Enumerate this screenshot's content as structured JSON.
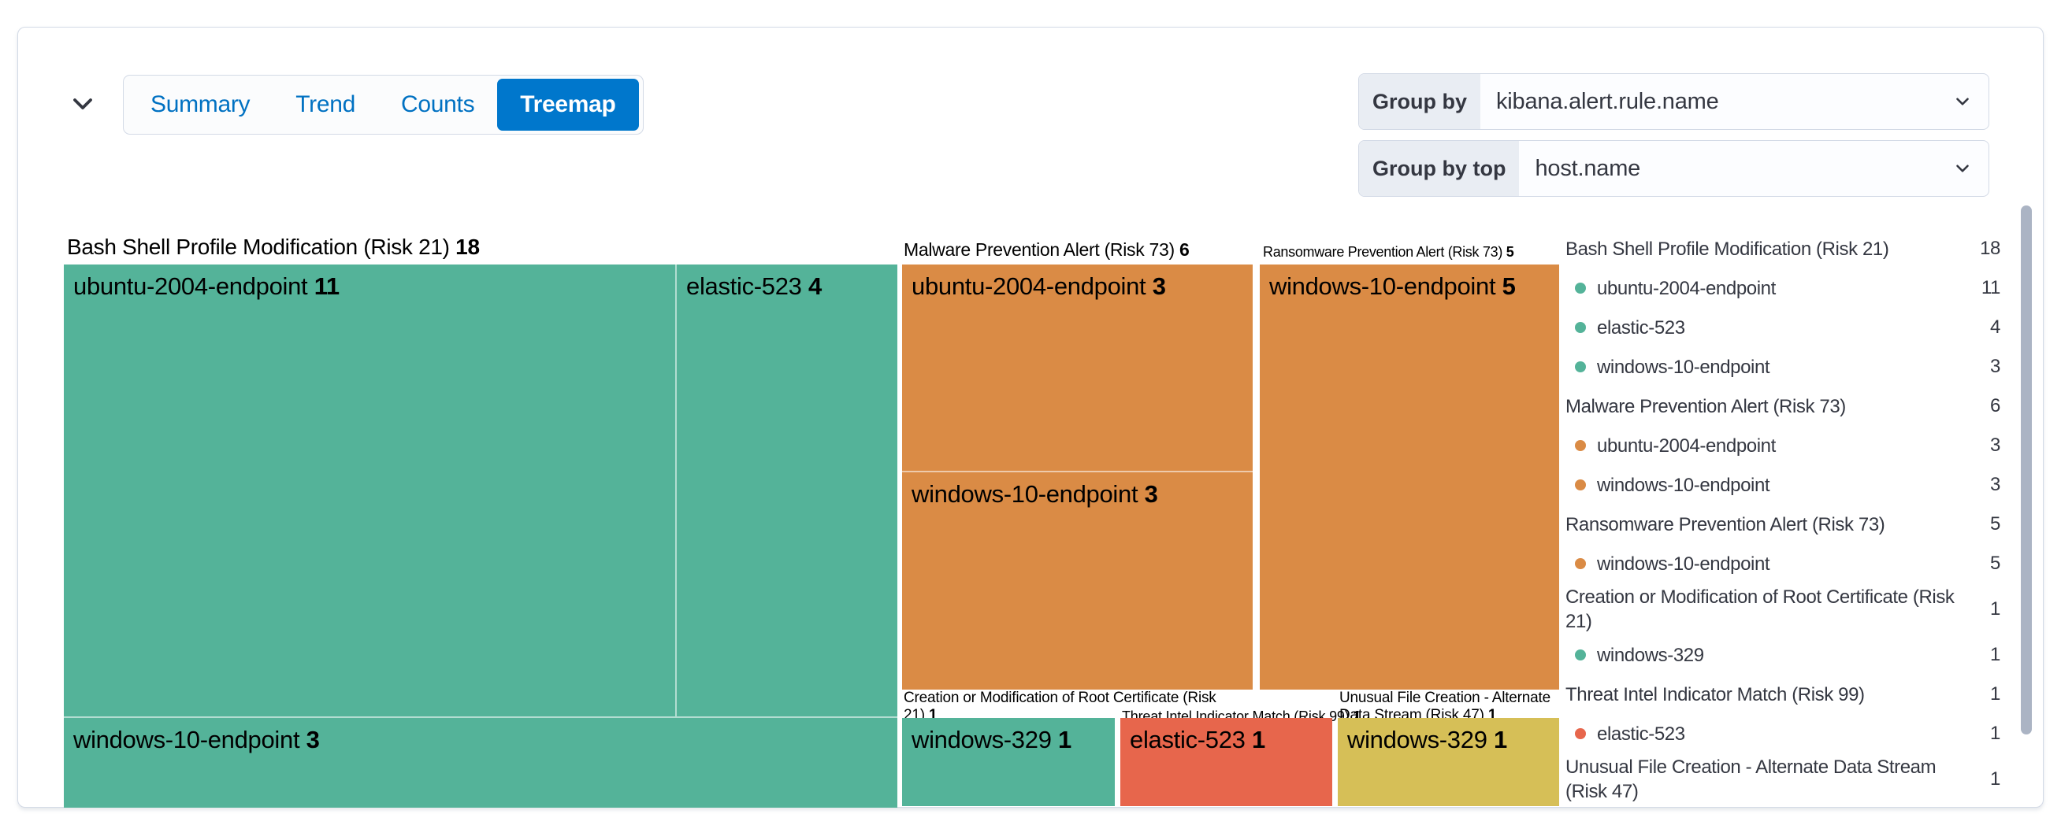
{
  "tabs": {
    "collapse_icon": "chevron-down-icon",
    "items": [
      {
        "label": "Summary",
        "selected": false
      },
      {
        "label": "Trend",
        "selected": false
      },
      {
        "label": "Counts",
        "selected": false
      },
      {
        "label": "Treemap",
        "selected": true
      }
    ]
  },
  "controls": {
    "group_by": {
      "label": "Group by",
      "value": "kibana.alert.rule.name"
    },
    "group_by_top": {
      "label": "Group by top",
      "value": "host.name"
    }
  },
  "colors": {
    "green": "#54B399",
    "orange": "#DA8B45",
    "red": "#E7664C",
    "yellow": "#D6BF57",
    "tab_selected_bg": "#0077CC",
    "link_blue": "#0071C2",
    "border": "#D3DAE6",
    "text": "#343741",
    "prepend_bg": "#E9EDF3",
    "scrollbar_thumb": "#ABB4C4"
  },
  "treemap": {
    "groups": [
      {
        "name": "Bash Shell Profile Modification (Risk 21)",
        "count": "18",
        "color": "#54B399",
        "cells": [
          {
            "host": "ubuntu-2004-endpoint",
            "count": "11"
          },
          {
            "host": "elastic-523",
            "count": "4"
          },
          {
            "host": "windows-10-endpoint",
            "count": "3"
          }
        ]
      },
      {
        "name": "Malware Prevention Alert (Risk 73)",
        "count": "6",
        "color": "#DA8B45",
        "cells": [
          {
            "host": "ubuntu-2004-endpoint",
            "count": "3"
          },
          {
            "host": "windows-10-endpoint",
            "count": "3"
          }
        ]
      },
      {
        "name": "Ransomware Prevention Alert (Risk 73)",
        "count": "5",
        "color": "#DA8B45",
        "cells": [
          {
            "host": "windows-10-endpoint",
            "count": "5"
          }
        ]
      },
      {
        "name": "Creation or Modification of Root Certificate",
        "count": "1",
        "name_suffix": "(Risk 21)",
        "color": "#54B399",
        "cells": [
          {
            "host": "windows-329",
            "count": "1"
          }
        ]
      },
      {
        "name": "Threat Intel Indicator Match (Risk 99)",
        "count": "1",
        "color": "#E7664C",
        "cells": [
          {
            "host": "elastic-523",
            "count": "1"
          }
        ]
      },
      {
        "name": "Unusual File Creation - Alternate Data Stream",
        "count": "1",
        "name_suffix": "(Risk 47)",
        "color": "#D6BF57",
        "cells": [
          {
            "host": "windows-329",
            "count": "1"
          }
        ]
      }
    ]
  },
  "legend": {
    "rows": [
      {
        "kind": "rule",
        "label": "Bash Shell Profile Modification (Risk 21)",
        "count": "18"
      },
      {
        "kind": "host",
        "label": "ubuntu-2004-endpoint",
        "count": "11",
        "color": "#54B399"
      },
      {
        "kind": "host",
        "label": "elastic-523",
        "count": "4",
        "color": "#54B399"
      },
      {
        "kind": "host",
        "label": "windows-10-endpoint",
        "count": "3",
        "color": "#54B399"
      },
      {
        "kind": "rule",
        "label": "Malware Prevention Alert (Risk 73)",
        "count": "6"
      },
      {
        "kind": "host",
        "label": "ubuntu-2004-endpoint",
        "count": "3",
        "color": "#DA8B45"
      },
      {
        "kind": "host",
        "label": "windows-10-endpoint",
        "count": "3",
        "color": "#DA8B45"
      },
      {
        "kind": "rule",
        "label": "Ransomware Prevention Alert (Risk 73)",
        "count": "5"
      },
      {
        "kind": "host",
        "label": "windows-10-endpoint",
        "count": "5",
        "color": "#DA8B45"
      },
      {
        "kind": "rule",
        "label": "Creation or Modification of Root Certificate (Risk 21)",
        "count": "1"
      },
      {
        "kind": "host",
        "label": "windows-329",
        "count": "1",
        "color": "#54B399"
      },
      {
        "kind": "rule",
        "label": "Threat Intel Indicator Match (Risk 99)",
        "count": "1"
      },
      {
        "kind": "host",
        "label": "elastic-523",
        "count": "1",
        "color": "#E7664C"
      },
      {
        "kind": "rule",
        "label": "Unusual File Creation - Alternate Data Stream (Risk 47)",
        "count": "1"
      }
    ]
  },
  "chart_data": {
    "type": "treemap",
    "group_by": "kibana.alert.rule.name",
    "group_by_top": "host.name",
    "legend_position": "right",
    "series": [
      {
        "name": "Bash Shell Profile Modification (Risk 21)",
        "value": 18,
        "color": "#54B399",
        "children": [
          {
            "name": "ubuntu-2004-endpoint",
            "value": 11
          },
          {
            "name": "elastic-523",
            "value": 4
          },
          {
            "name": "windows-10-endpoint",
            "value": 3
          }
        ]
      },
      {
        "name": "Malware Prevention Alert (Risk 73)",
        "value": 6,
        "color": "#DA8B45",
        "children": [
          {
            "name": "ubuntu-2004-endpoint",
            "value": 3
          },
          {
            "name": "windows-10-endpoint",
            "value": 3
          }
        ]
      },
      {
        "name": "Ransomware Prevention Alert (Risk 73)",
        "value": 5,
        "color": "#DA8B45",
        "children": [
          {
            "name": "windows-10-endpoint",
            "value": 5
          }
        ]
      },
      {
        "name": "Creation or Modification of Root Certificate (Risk 21)",
        "value": 1,
        "color": "#54B399",
        "children": [
          {
            "name": "windows-329",
            "value": 1
          }
        ]
      },
      {
        "name": "Threat Intel Indicator Match (Risk 99)",
        "value": 1,
        "color": "#E7664C",
        "children": [
          {
            "name": "elastic-523",
            "value": 1
          }
        ]
      },
      {
        "name": "Unusual File Creation - Alternate Data Stream (Risk 47)",
        "value": 1,
        "color": "#D6BF57",
        "children": [
          {
            "name": "windows-329",
            "value": 1
          }
        ]
      }
    ]
  }
}
